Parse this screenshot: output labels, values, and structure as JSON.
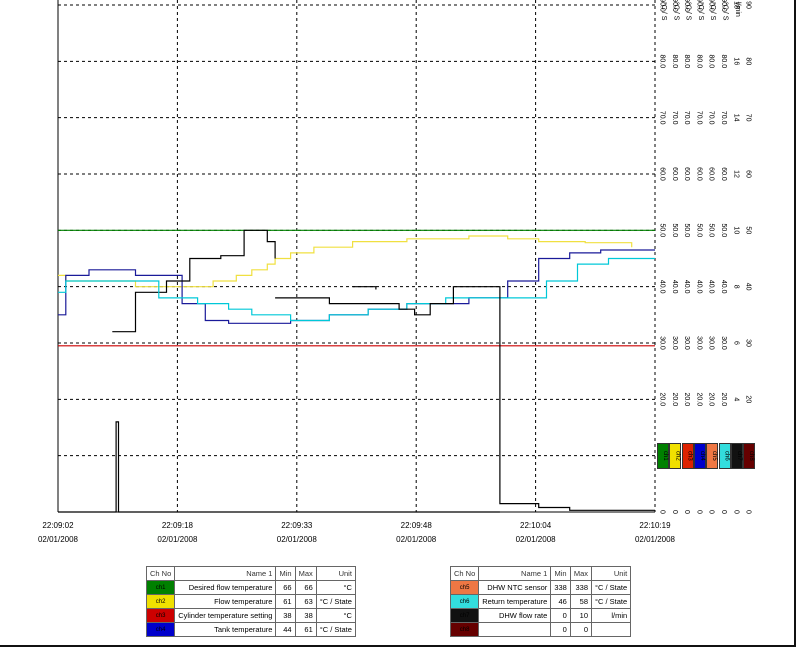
{
  "chart_data": {
    "type": "line",
    "x_ticks": [
      {
        "time": "22:09:02",
        "date": "02/01/2008"
      },
      {
        "time": "22:09:18",
        "date": "02/01/2008"
      },
      {
        "time": "22:09:33",
        "date": "02/01/2008"
      },
      {
        "time": "22:09:48",
        "date": "02/01/2008"
      },
      {
        "time": "22:10:04",
        "date": "02/01/2008"
      },
      {
        "time": "22:10:19",
        "date": "02/01/2008"
      }
    ],
    "xlim": [
      0,
      77
    ],
    "ylim": [
      0,
      100
    ],
    "y_scale_percent_ticks": [
      0,
      10,
      20,
      30,
      40,
      50,
      60,
      70,
      80,
      90
    ],
    "right_axis_columns": [
      {
        "channel": "ch1",
        "unit": "°C / S",
        "ticks": [
          "0",
          "10.0",
          "20.0",
          "30.0",
          "40.0",
          "50.0",
          "60.0",
          "70.0",
          "80.0",
          "90.0"
        ]
      },
      {
        "channel": "ch2",
        "unit": "°C / S",
        "ticks": [
          "0",
          "10.0",
          "20.0",
          "30.0",
          "40.0",
          "50.0",
          "60.0",
          "70.0",
          "80.0",
          "90.0"
        ]
      },
      {
        "channel": "ch3",
        "unit": "°C / S",
        "ticks": [
          "0",
          "10.0",
          "20.0",
          "30.0",
          "40.0",
          "50.0",
          "60.0",
          "70.0",
          "80.0",
          "90.0"
        ]
      },
      {
        "channel": "ch4",
        "unit": "°C / S",
        "ticks": [
          "0",
          "10.0",
          "20.0",
          "30.0",
          "40.0",
          "50.0",
          "60.0",
          "70.0",
          "80.0",
          "90.0"
        ]
      },
      {
        "channel": "ch5",
        "unit": "°C / S",
        "ticks": [
          "0",
          "10.0",
          "20.0",
          "30.0",
          "40.0",
          "50.0",
          "60.0",
          "70.0",
          "80.0",
          "90.0"
        ]
      },
      {
        "channel": "ch6",
        "unit": "°C / S",
        "ticks": [
          "0",
          "10.0",
          "20.0",
          "30.0",
          "40.0",
          "50.0",
          "60.0",
          "70.0",
          "80.0",
          "90.0"
        ]
      },
      {
        "channel": "ch7",
        "unit": "l/min",
        "ticks": [
          "0",
          "2",
          "4",
          "6",
          "8",
          "10",
          "12",
          "14",
          "16",
          "18"
        ]
      },
      {
        "channel": "ch8",
        "unit": "",
        "ticks": [
          "0",
          "10",
          "20",
          "30",
          "40",
          "50",
          "60",
          "70",
          "80",
          "90"
        ]
      }
    ],
    "series": [
      {
        "name": "Desired flow temperature",
        "color": "#008000",
        "points": [
          [
            0,
            50
          ],
          [
            77,
            50
          ]
        ]
      },
      {
        "name": "Flow temperature",
        "color": "#f0e040",
        "points": [
          [
            0,
            42
          ],
          [
            1,
            42
          ],
          [
            1,
            41
          ],
          [
            10,
            41
          ],
          [
            10,
            40
          ],
          [
            20,
            40
          ],
          [
            20,
            41
          ],
          [
            23,
            41
          ],
          [
            23,
            42
          ],
          [
            25,
            42
          ],
          [
            25,
            43
          ],
          [
            27,
            43
          ],
          [
            27,
            44
          ],
          [
            28,
            44
          ],
          [
            28,
            45
          ],
          [
            30,
            45
          ],
          [
            30,
            46
          ],
          [
            33,
            46
          ],
          [
            33,
            47
          ],
          [
            38,
            47
          ],
          [
            38,
            48
          ],
          [
            45,
            48
          ],
          [
            45,
            48.5
          ],
          [
            53,
            48.5
          ],
          [
            53,
            49
          ],
          [
            58,
            49
          ],
          [
            58,
            48.5
          ],
          [
            62,
            48.5
          ],
          [
            62,
            48
          ],
          [
            68,
            48
          ],
          [
            68,
            47.8
          ],
          [
            74,
            47.8
          ],
          [
            74,
            47
          ]
        ]
      },
      {
        "name": "Cylinder temperature setting",
        "color": "#cc0000",
        "points": [
          [
            0,
            29.5
          ],
          [
            77,
            29.5
          ]
        ]
      },
      {
        "name": "Tank temperature",
        "color": "#1a1a99",
        "points": [
          [
            0,
            35
          ],
          [
            1,
            35
          ],
          [
            1,
            42
          ],
          [
            4,
            42
          ],
          [
            4,
            43
          ],
          [
            10,
            43
          ],
          [
            10,
            42
          ],
          [
            16,
            42
          ],
          [
            16,
            37
          ],
          [
            19,
            37
          ],
          [
            19,
            34
          ],
          [
            22,
            34
          ],
          [
            22,
            33.5
          ],
          [
            30,
            33.5
          ],
          [
            30,
            34
          ],
          [
            35,
            34
          ],
          [
            35,
            35
          ],
          [
            40,
            35
          ],
          [
            40,
            36
          ],
          [
            45,
            36
          ],
          [
            45,
            37
          ],
          [
            53,
            37
          ],
          [
            53,
            38
          ],
          [
            58,
            38
          ],
          [
            58,
            41
          ],
          [
            62,
            41
          ],
          [
            62,
            45
          ],
          [
            66,
            45
          ],
          [
            66,
            46
          ],
          [
            70,
            46
          ],
          [
            70,
            46.5
          ],
          [
            77,
            46.5
          ]
        ]
      },
      {
        "name": "DHW NTC sensor",
        "color": "#000000",
        "points": [
          [
            7,
            32
          ],
          [
            10,
            32
          ],
          [
            10,
            39
          ],
          [
            14,
            39
          ],
          [
            14,
            41
          ],
          [
            17,
            41
          ],
          [
            17,
            45
          ],
          [
            21,
            45
          ],
          [
            21,
            45.5
          ],
          [
            24,
            45.5
          ],
          [
            24,
            50
          ],
          [
            27,
            50
          ],
          [
            27,
            48
          ],
          [
            28,
            48
          ],
          [
            28,
            45
          ]
        ]
      },
      {
        "name": "Return temperature",
        "color": "#00c8d8",
        "points": [
          [
            0,
            39
          ],
          [
            1,
            39
          ],
          [
            1,
            41
          ],
          [
            13,
            41
          ],
          [
            13,
            38
          ],
          [
            18,
            38
          ],
          [
            18,
            37
          ],
          [
            22,
            37
          ],
          [
            22,
            36
          ],
          [
            25,
            36
          ],
          [
            25,
            35
          ],
          [
            30,
            35
          ],
          [
            30,
            34
          ],
          [
            35,
            34
          ],
          [
            35,
            35
          ],
          [
            40,
            35
          ],
          [
            40,
            36
          ],
          [
            45,
            36
          ],
          [
            45,
            37
          ],
          [
            50,
            37
          ],
          [
            50,
            38
          ],
          [
            63,
            38
          ],
          [
            63,
            41
          ],
          [
            67,
            41
          ],
          [
            67,
            44
          ],
          [
            71,
            44
          ],
          [
            71,
            45
          ],
          [
            77,
            45
          ]
        ]
      },
      {
        "name": "DHW flow rate",
        "color": "#000000",
        "points": [
          [
            0,
            0
          ],
          [
            7.5,
            0
          ],
          [
            7.5,
            16
          ],
          [
            7.8,
            16
          ],
          [
            7.8,
            0
          ],
          [
            57,
            0
          ]
        ]
      },
      {
        "name": "DHW flow rate (end)",
        "color": "#000000",
        "points": [
          [
            28,
            38
          ],
          [
            35,
            38
          ],
          [
            35,
            37
          ],
          [
            44,
            37
          ],
          [
            44,
            36
          ],
          [
            46,
            36
          ],
          [
            46,
            35
          ],
          [
            48,
            35
          ],
          [
            48,
            37
          ],
          [
            51,
            37
          ],
          [
            51,
            40
          ],
          [
            57,
            40
          ],
          [
            57,
            39
          ],
          [
            57,
            39
          ],
          [
            57,
            1.5
          ],
          [
            62,
            1.5
          ],
          [
            62,
            0.8
          ],
          [
            66,
            0.8
          ],
          [
            66,
            0.3
          ],
          [
            77,
            0.3
          ]
        ]
      },
      {
        "name": "Misc step trace",
        "color": "#000000",
        "points": [
          [
            38,
            40
          ],
          [
            41,
            40
          ],
          [
            41,
            39.5
          ]
        ]
      }
    ]
  },
  "legend_left": {
    "headers": [
      "Ch No",
      "Name 1",
      "Min",
      "Max",
      "Unit"
    ],
    "rows": [
      {
        "ch": "ch1",
        "color": "#008000",
        "name": "Desired flow temperature",
        "min": "66",
        "max": "66",
        "unit": "°C"
      },
      {
        "ch": "ch2",
        "color": "#f0e000",
        "name": "Flow temperature",
        "min": "61",
        "max": "63",
        "unit": "°C / State"
      },
      {
        "ch": "ch3",
        "color": "#cc0000",
        "name": "Cylinder temperature setting",
        "min": "38",
        "max": "38",
        "unit": "°C"
      },
      {
        "ch": "ch4",
        "color": "#0000cc",
        "name": "Tank temperature",
        "min": "44",
        "max": "61",
        "unit": "°C / State"
      }
    ]
  },
  "legend_right": {
    "headers": [
      "Ch No",
      "Name 1",
      "Min",
      "Max",
      "Unit"
    ],
    "rows": [
      {
        "ch": "ch5",
        "color": "#ee7744",
        "name": "DHW NTC sensor",
        "min": "338",
        "max": "338",
        "unit": "°C / State"
      },
      {
        "ch": "ch6",
        "color": "#33dddd",
        "name": "Return temperature",
        "min": "46",
        "max": "58",
        "unit": "°C / State"
      },
      {
        "ch": "ch7",
        "color": "#111111",
        "name": "DHW flow rate",
        "min": "0",
        "max": "10",
        "unit": "l/min"
      },
      {
        "ch": "ch8",
        "color": "#660000",
        "name": "",
        "min": "0",
        "max": "0",
        "unit": ""
      }
    ]
  },
  "channel_swatches": [
    {
      "ch": "ch1",
      "color": "#008000"
    },
    {
      "ch": "ch2",
      "color": "#f0e000"
    },
    {
      "ch": "ch3",
      "color": "#dd2200"
    },
    {
      "ch": "ch4",
      "color": "#0000cc"
    },
    {
      "ch": "ch5",
      "color": "#ee7744"
    },
    {
      "ch": "ch6",
      "color": "#33dddd"
    },
    {
      "ch": "ch7",
      "color": "#111111"
    },
    {
      "ch": "ch8",
      "color": "#660000"
    }
  ]
}
